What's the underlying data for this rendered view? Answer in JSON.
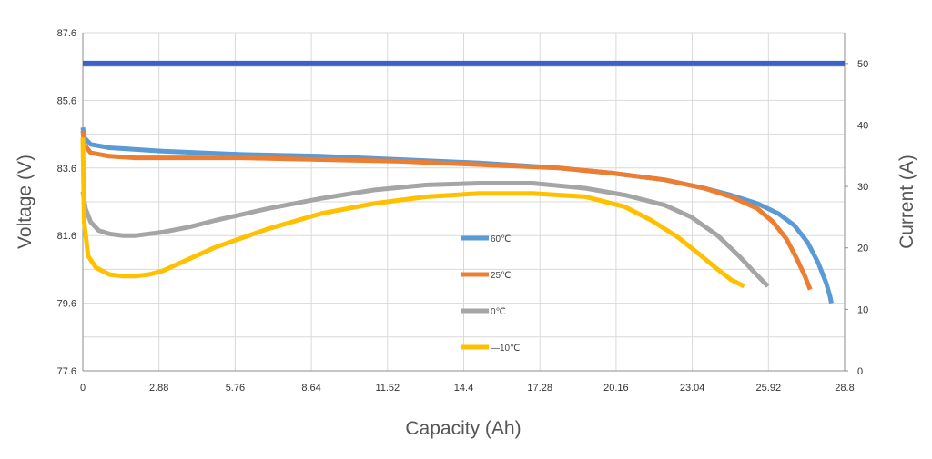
{
  "chart_data": {
    "type": "line",
    "xlabel": "Capacity (Ah)",
    "ylabel": "Voltage (V)",
    "y2label": "Current (A)",
    "xlim": [
      0,
      28.8
    ],
    "ylim": [
      77.6,
      87.6
    ],
    "y2lim": [
      0,
      55
    ],
    "x_ticks": [
      "0",
      "2.88",
      "5.76",
      "8.64",
      "11.52",
      "14.4",
      "17.28",
      "20.16",
      "23.04",
      "25.92",
      "28.8"
    ],
    "y_ticks": [
      "77.6",
      "79.6",
      "81.6",
      "83.6",
      "85.6",
      "87.6"
    ],
    "y2_ticks": [
      "0",
      "10",
      "20",
      "30",
      "40",
      "50"
    ],
    "grid": true,
    "legend_position": "center",
    "current": {
      "color": "#3a62c9",
      "value": 50
    },
    "series": [
      {
        "name": "60℃",
        "color": "#5b9bd5",
        "x": [
          0,
          0.05,
          0.3,
          1,
          3,
          6,
          9,
          12,
          15,
          18,
          20,
          22,
          23.5,
          24.5,
          25.5,
          26.3,
          26.9,
          27.4,
          27.8,
          28.1,
          28.25,
          28.3
        ],
        "y": [
          84.8,
          84.5,
          84.3,
          84.2,
          84.1,
          84.0,
          83.95,
          83.85,
          83.75,
          83.6,
          83.45,
          83.25,
          83.0,
          82.8,
          82.55,
          82.25,
          81.9,
          81.4,
          80.8,
          80.2,
          79.8,
          79.6
        ]
      },
      {
        "name": "25℃",
        "color": "#ed7d31",
        "x": [
          0,
          0.05,
          0.3,
          1,
          2,
          3,
          6,
          9,
          12,
          15,
          18,
          20,
          22,
          23.5,
          24.5,
          25.5,
          26.1,
          26.6,
          27.0,
          27.3,
          27.5
        ],
        "y": [
          84.7,
          84.3,
          84.05,
          83.95,
          83.9,
          83.9,
          83.9,
          83.85,
          83.8,
          83.7,
          83.6,
          83.45,
          83.25,
          83.0,
          82.75,
          82.4,
          82.0,
          81.5,
          80.9,
          80.4,
          80.0
        ]
      },
      {
        "name": "0℃",
        "color": "#a5a5a5",
        "x": [
          0,
          0.1,
          0.3,
          0.6,
          1,
          1.5,
          2,
          2.5,
          3,
          4,
          5,
          7,
          9,
          11,
          13,
          15,
          17,
          19,
          20.5,
          22,
          23,
          24,
          24.8,
          25.4,
          25.9
        ],
        "y": [
          82.9,
          82.4,
          82.0,
          81.75,
          81.65,
          81.6,
          81.6,
          81.65,
          81.7,
          81.85,
          82.05,
          82.4,
          82.7,
          82.95,
          83.1,
          83.15,
          83.15,
          83.0,
          82.8,
          82.5,
          82.15,
          81.6,
          81.0,
          80.5,
          80.1
        ]
      },
      {
        "name": "—10℃",
        "color": "#ffc000",
        "x": [
          0,
          0.05,
          0.2,
          0.5,
          1,
          1.5,
          2,
          2.5,
          3,
          4,
          5,
          7,
          9,
          11,
          13,
          15,
          17,
          19,
          20.5,
          21.5,
          22.5,
          23.3,
          24.0,
          24.5,
          25.0
        ],
        "y": [
          84.5,
          82.0,
          81.0,
          80.65,
          80.45,
          80.4,
          80.4,
          80.45,
          80.55,
          80.9,
          81.25,
          81.8,
          82.25,
          82.55,
          82.75,
          82.85,
          82.85,
          82.75,
          82.45,
          82.05,
          81.55,
          81.05,
          80.6,
          80.3,
          80.1
        ]
      }
    ]
  }
}
